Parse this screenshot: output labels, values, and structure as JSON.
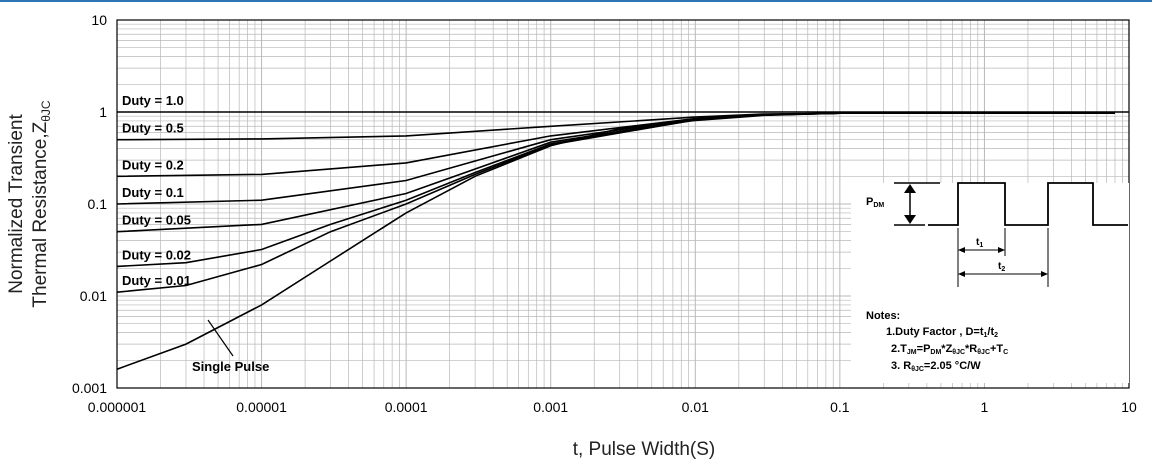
{
  "chart_data": {
    "type": "line",
    "xlabel": "t, Pulse Width(S)",
    "ylabel_line1": "Normalized Transient",
    "ylabel_line2": "Thermal Resistance,Z",
    "ylabel_sub": "θJC",
    "x_scale": "log",
    "y_scale": "log",
    "xlim": [
      1e-06,
      10
    ],
    "ylim": [
      0.001,
      10
    ],
    "grid": true,
    "x_ticks": [
      "0.000001",
      "0.00001",
      "0.0001",
      "0.001",
      "0.01",
      "0.1",
      "1",
      "10"
    ],
    "y_ticks": [
      "10",
      "1",
      "0.1",
      "0.01",
      "0.001"
    ],
    "series": [
      {
        "name": "Duty = 1.0",
        "x": [
          1e-06,
          10
        ],
        "y": [
          1.0,
          1.0
        ]
      },
      {
        "name": "Duty = 0.5",
        "x": [
          1e-06,
          1e-05,
          0.0001,
          0.001,
          0.01,
          0.03,
          0.1,
          1,
          8
        ],
        "y": [
          0.5,
          0.51,
          0.55,
          0.7,
          0.88,
          0.95,
          0.97,
          0.97,
          0.97
        ]
      },
      {
        "name": "Duty = 0.2",
        "x": [
          1e-06,
          1e-05,
          0.0001,
          0.001,
          0.01,
          0.03,
          0.1,
          1,
          8
        ],
        "y": [
          0.2,
          0.21,
          0.28,
          0.55,
          0.85,
          0.94,
          0.97,
          0.97,
          0.97
        ]
      },
      {
        "name": "Duty = 0.1",
        "x": [
          1e-06,
          1e-05,
          0.0001,
          0.001,
          0.01,
          0.03,
          0.1,
          1,
          8
        ],
        "y": [
          0.1,
          0.11,
          0.18,
          0.5,
          0.84,
          0.94,
          0.97,
          0.97,
          0.97
        ]
      },
      {
        "name": "Duty = 0.05",
        "x": [
          1e-06,
          1e-05,
          0.0001,
          0.001,
          0.01,
          0.03,
          0.1,
          1,
          8
        ],
        "y": [
          0.05,
          0.06,
          0.13,
          0.47,
          0.83,
          0.93,
          0.97,
          0.97,
          0.97
        ]
      },
      {
        "name": "Duty = 0.02",
        "x": [
          1e-06,
          3e-06,
          1e-05,
          3e-05,
          0.0001,
          0.0003,
          0.001,
          0.01,
          0.03,
          0.1,
          1,
          8
        ],
        "y": [
          0.021,
          0.023,
          0.032,
          0.06,
          0.11,
          0.22,
          0.45,
          0.82,
          0.93,
          0.97,
          0.97,
          0.97
        ]
      },
      {
        "name": "Duty = 0.01",
        "x": [
          1e-06,
          3e-06,
          1e-05,
          3e-05,
          0.0001,
          0.0003,
          0.001,
          0.01,
          0.03,
          0.1,
          1,
          8
        ],
        "y": [
          0.011,
          0.013,
          0.022,
          0.05,
          0.1,
          0.21,
          0.44,
          0.82,
          0.93,
          0.97,
          0.97,
          0.97
        ]
      },
      {
        "name": "Single Pulse",
        "x": [
          1e-06,
          3e-06,
          1e-05,
          3e-05,
          0.0001,
          0.0003,
          0.001,
          0.003,
          0.01,
          0.03,
          0.1,
          1,
          8
        ],
        "y": [
          0.0016,
          0.003,
          0.008,
          0.024,
          0.08,
          0.2,
          0.43,
          0.66,
          0.81,
          0.92,
          0.97,
          0.97,
          0.97
        ]
      }
    ],
    "duty_labels": [
      "Duty = 1.0",
      "Duty = 0.5",
      "Duty = 0.2",
      "Duty = 0.1",
      "Duty = 0.05",
      "Duty = 0.02",
      "Duty = 0.01"
    ],
    "single_pulse_label": "Single Pulse",
    "annotation": {
      "pdm": "P",
      "pdm_sub": "DM",
      "t1": "t",
      "t1_sub": "1",
      "t2": "t",
      "t2_sub": "2",
      "notes_title": "Notes:",
      "note1": "1.Duty Factor , D=t",
      "note1_sub1": "1",
      "note1_mid": "/t",
      "note1_sub2": "2",
      "note2": "2.T",
      "note2_sub1": "JM",
      "note2_mid1": "=P",
      "note2_sub2": "DM",
      "note2_mid2": "*Z",
      "note2_sub3": "θJC",
      "note2_mid3": "*R",
      "note2_sub4": "θJC",
      "note2_mid4": "+T",
      "note2_sub5": "C",
      "note3": "3. R",
      "note3_sub": "θJC",
      "note3_end": "=2.05 °C/W"
    }
  },
  "colors": {
    "curve": "#000000",
    "grid": "#b8b8b8",
    "accent_line": "#2e75b6"
  }
}
